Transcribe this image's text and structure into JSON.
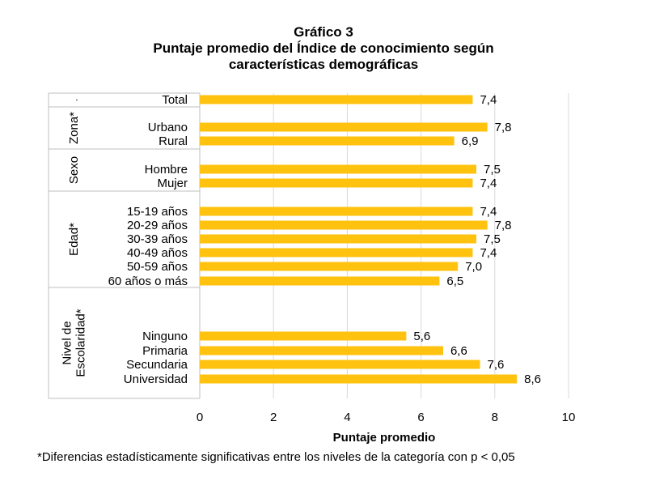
{
  "title": {
    "line1": "Gráfico 3",
    "line2": "Puntaje promedio del Índice de conocimiento según",
    "line3": "características demográficas"
  },
  "footnote": "*Diferencias estadísticamente significativas entre los niveles de la categoría con p < 0,05",
  "colors": {
    "bar": "#FFC20E",
    "grid": "#D9D9D9",
    "divider": "#BFBFBF"
  },
  "chart_data": {
    "type": "bar",
    "orientation": "horizontal",
    "xlabel": "Puntaje promedio",
    "xlim": [
      0,
      10
    ],
    "xticks": [
      "0",
      "2",
      "4",
      "6",
      "8",
      "10"
    ],
    "grid": true,
    "groups": [
      {
        "label": "",
        "rows": [
          {
            "category": "Total",
            "value": 7.4,
            "label": "7,4"
          }
        ]
      },
      {
        "label": "Zona*",
        "rows": [
          {
            "category": "Urbano",
            "value": 7.8,
            "label": "7,8"
          },
          {
            "category": "Rural",
            "value": 6.9,
            "label": "6,9"
          }
        ]
      },
      {
        "label": "Sexo",
        "rows": [
          {
            "category": "Hombre",
            "value": 7.5,
            "label": "7,5"
          },
          {
            "category": "Mujer",
            "value": 7.4,
            "label": "7,4"
          }
        ]
      },
      {
        "label": "Edad*",
        "rows": [
          {
            "category": "15-19 años",
            "value": 7.4,
            "label": "7,4"
          },
          {
            "category": "20-29 años",
            "value": 7.8,
            "label": "7,8"
          },
          {
            "category": "30-39 años",
            "value": 7.5,
            "label": "7,5"
          },
          {
            "category": "40-49 años",
            "value": 7.4,
            "label": "7,4"
          },
          {
            "category": "50-59 años",
            "value": 7.0,
            "label": "7,0"
          },
          {
            "category": "60 años o más",
            "value": 6.5,
            "label": "6,5"
          }
        ]
      },
      {
        "label": "Nivel de Escolaridad*",
        "label_lines": [
          "Nivel de",
          "Escolaridad*"
        ],
        "rows": [
          {
            "category": "Ninguno",
            "value": 5.6,
            "label": "5,6"
          },
          {
            "category": "Primaria",
            "value": 6.6,
            "label": "6,6"
          },
          {
            "category": "Secundaria",
            "value": 7.6,
            "label": "7,6"
          },
          {
            "category": "Universidad",
            "value": 8.6,
            "label": "8,6"
          }
        ]
      }
    ]
  }
}
